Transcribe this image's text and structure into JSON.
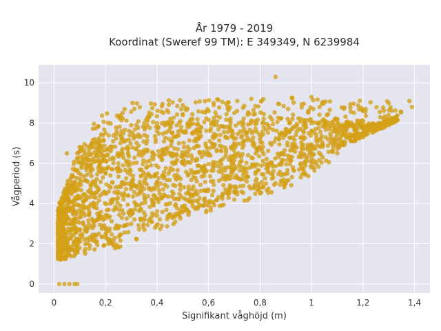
{
  "chart_data": {
    "type": "scatter",
    "title_line1": "År 1979 - 2019",
    "title_line2": "Koordinat (Sweref 99 TM): E 349349, N 6239984",
    "xlabel": "Signifikant våghöjd (m)",
    "ylabel": "Vågperiod (s)",
    "xlim": [
      -0.06,
      1.46
    ],
    "ylim": [
      -0.45,
      10.9
    ],
    "x_ticks": [
      0,
      0.2,
      0.4,
      0.6,
      0.8,
      1,
      1.2,
      1.4
    ],
    "x_tick_labels": [
      "0",
      "0,2",
      "0,4",
      "0,6",
      "0,8",
      "1",
      "1,2",
      "1,4"
    ],
    "y_ticks": [
      0,
      2,
      4,
      6,
      8,
      10
    ],
    "y_tick_labels": [
      "0",
      "2",
      "4",
      "6",
      "8",
      "10"
    ],
    "grid": true,
    "colors": {
      "marker": "#D4A017",
      "plot_background": "#E5E5F0",
      "grid": "#ffffff"
    },
    "series": [
      {
        "marker_color": "#D4A017",
        "points": [
          [
            0.02,
            0
          ],
          [
            0.04,
            0
          ],
          [
            0.06,
            0
          ],
          [
            0.08,
            0
          ],
          [
            0.09,
            0
          ],
          [
            0.05,
            1.4
          ],
          [
            0.1,
            1.8
          ],
          [
            0.05,
            3.0
          ],
          [
            0.08,
            5.0
          ],
          [
            0.05,
            6.5
          ],
          [
            0.15,
            2.2
          ],
          [
            0.15,
            4.5
          ],
          [
            0.15,
            7.0
          ],
          [
            0.2,
            2.5
          ],
          [
            0.2,
            5.5
          ],
          [
            0.2,
            7.5
          ],
          [
            0.25,
            2.8
          ],
          [
            0.25,
            6.0
          ],
          [
            0.3,
            3.0
          ],
          [
            0.3,
            5.0
          ],
          [
            0.3,
            7.9
          ],
          [
            0.35,
            3.2
          ],
          [
            0.35,
            6.5
          ],
          [
            0.4,
            3.4
          ],
          [
            0.4,
            5.5
          ],
          [
            0.4,
            8.0
          ],
          [
            0.5,
            3.6
          ],
          [
            0.5,
            6.0
          ],
          [
            0.5,
            8.4
          ],
          [
            0.6,
            3.9
          ],
          [
            0.6,
            6.5
          ],
          [
            0.6,
            8.6
          ],
          [
            0.7,
            4.2
          ],
          [
            0.7,
            7.0
          ],
          [
            0.7,
            8.5
          ],
          [
            0.8,
            4.5
          ],
          [
            0.8,
            7.2
          ],
          [
            0.86,
            10.3
          ],
          [
            0.9,
            5.0
          ],
          [
            0.9,
            7.5
          ],
          [
            1.0,
            5.8
          ],
          [
            1.0,
            8.0
          ],
          [
            1.0,
            9.3
          ],
          [
            1.1,
            6.5
          ],
          [
            1.1,
            8.2
          ],
          [
            1.2,
            7.3
          ],
          [
            1.2,
            8.6
          ],
          [
            1.3,
            8.2
          ],
          [
            1.3,
            9.0
          ],
          [
            1.38,
            9.1
          ],
          [
            1.39,
            8.8
          ]
        ]
      }
    ]
  }
}
